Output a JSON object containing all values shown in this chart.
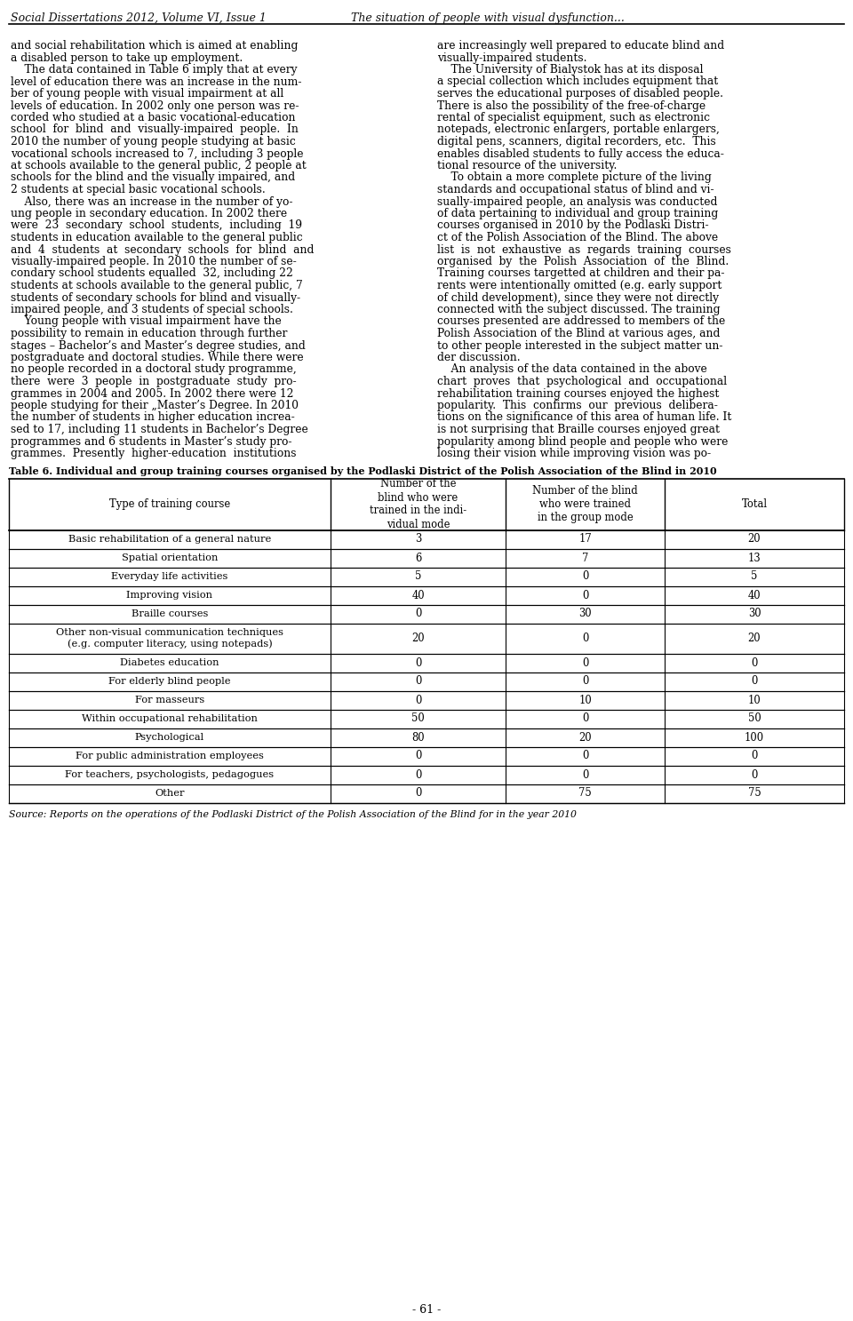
{
  "header_title": "Social Dissertations 2012, Volume VI, Issue 1",
  "header_subtitle": "The situation of people with visual dysfunction...",
  "page_number": "- 61 -",
  "left_column_lines": [
    "and social rehabilitation which is aimed at enabling",
    "a disabled person to take up employment.",
    "    The data contained in Table 6 imply that at every",
    "level of education there was an increase in the num-",
    "ber of young people with visual impairment at all",
    "levels of education. In 2002 only one person was re-",
    "corded who studied at a basic vocational-education",
    "school  for  blind  and  visually-impaired  people.  In",
    "2010 the number of young people studying at basic",
    "vocational schools increased to 7, including 3 people",
    "at schools available to the general public, 2 people at",
    "schools for the blind and the visually impaired, and",
    "2 students at special basic vocational schools.",
    "    Also, there was an increase in the number of yo-",
    "ung people in secondary education. In 2002 there",
    "were  23  secondary  school  students,  including  19",
    "students in education available to the general public",
    "and  4  students  at  secondary  schools  for  blind  and",
    "visually-impaired people. In 2010 the number of se-",
    "condary school students equalled  32, including 22",
    "students at schools available to the general public, 7",
    "students of secondary schools for blind and visually-",
    "impaired people, and 3 students of special schools.",
    "    Young people with visual impairment have the",
    "possibility to remain in education through further",
    "stages – Bachelor’s and Master’s degree studies, and",
    "postgraduate and doctoral studies. While there were",
    "no people recorded in a doctoral study programme,",
    "there  were  3  people  in  postgraduate  study  pro-",
    "grammes in 2004 and 2005. In 2002 there were 12",
    "people studying for their „Master’s Degree. In 2010",
    "the number of students in higher education increa-",
    "sed to 17, including 11 students in Bachelor’s Degree",
    "programmes and 6 students in Master’s study pro-",
    "grammes.  Presently  higher-education  institutions"
  ],
  "right_column_lines": [
    "are increasingly well prepared to educate blind and",
    "visually-impaired students.",
    "    The University of Bialystok has at its disposal",
    "a special collection which includes equipment that",
    "serves the educational purposes of disabled people.",
    "There is also the possibility of the free-of-charge",
    "rental of specialist equipment, such as electronic",
    "notepads, electronic enlargers, portable enlargers,",
    "digital pens, scanners, digital recorders, etc.  This",
    "enables disabled students to fully access the educa-",
    "tional resource of the university.",
    "    To obtain a more complete picture of the living",
    "standards and occupational status of blind and vi-",
    "sually-impaired people, an analysis was conducted",
    "of data pertaining to individual and group training",
    "courses organised in 2010 by the Podlaski Distri-",
    "ct of the Polish Association of the Blind. The above",
    "list  is  not  exhaustive  as  regards  training  courses",
    "organised  by  the  Polish  Association  of  the  Blind.",
    "Training courses targetted at children and their pa-",
    "rents were intentionally omitted (e.g. early support",
    "of child development), since they were not directly",
    "connected with the subject discussed. The training",
    "courses presented are addressed to members of the",
    "Polish Association of the Blind at various ages, and",
    "to other people interested in the subject matter un-",
    "der discussion.",
    "    An analysis of the data contained in the above",
    "chart  proves  that  psychological  and  occupational",
    "rehabilitation training courses enjoyed the highest",
    "popularity.  This  confirms  our  previous  delibera-",
    "tions on the significance of this area of human life. It",
    "is not surprising that Braille courses enjoyed great",
    "popularity among blind people and people who were",
    "losing their vision while improving vision was po-"
  ],
  "table_caption": "Table 6. Individual and group training courses organised by the Podlaski District of the Polish Association of the Blind in 2010",
  "table_header_col0": "Type of training course",
  "table_header_col1": "Number of the\nblind who were\ntrained in the indi-\nvidual mode",
  "table_header_col2": "Number of the blind\nwho were trained\nin the group mode",
  "table_header_col3": "Total",
  "table_rows": [
    [
      "Basic rehabilitation of a general nature",
      "3",
      "17",
      "20"
    ],
    [
      "Spatial orientation",
      "6",
      "7",
      "13"
    ],
    [
      "Everyday life activities",
      "5",
      "0",
      "5"
    ],
    [
      "Improving vision",
      "40",
      "0",
      "40"
    ],
    [
      "Braille courses",
      "0",
      "30",
      "30"
    ],
    [
      "Other non-visual communication techniques\n(e.g. computer literacy, using notepads)",
      "20",
      "0",
      "20"
    ],
    [
      "Diabetes education",
      "0",
      "0",
      "0"
    ],
    [
      "For elderly blind people",
      "0",
      "0",
      "0"
    ],
    [
      "For masseurs",
      "0",
      "10",
      "10"
    ],
    [
      "Within occupational rehabilitation",
      "50",
      "0",
      "50"
    ],
    [
      "Psychological",
      "80",
      "20",
      "100"
    ],
    [
      "For public administration employees",
      "0",
      "0",
      "0"
    ],
    [
      "For teachers, psychologists, pedagogues",
      "0",
      "0",
      "0"
    ],
    [
      "Other",
      "0",
      "75",
      "75"
    ]
  ],
  "source_text": "Source: Reports on the operations of the Podlaski District of the Polish Association of the Blind for in the year 2010",
  "bg_color": "#ffffff",
  "text_color": "#000000"
}
